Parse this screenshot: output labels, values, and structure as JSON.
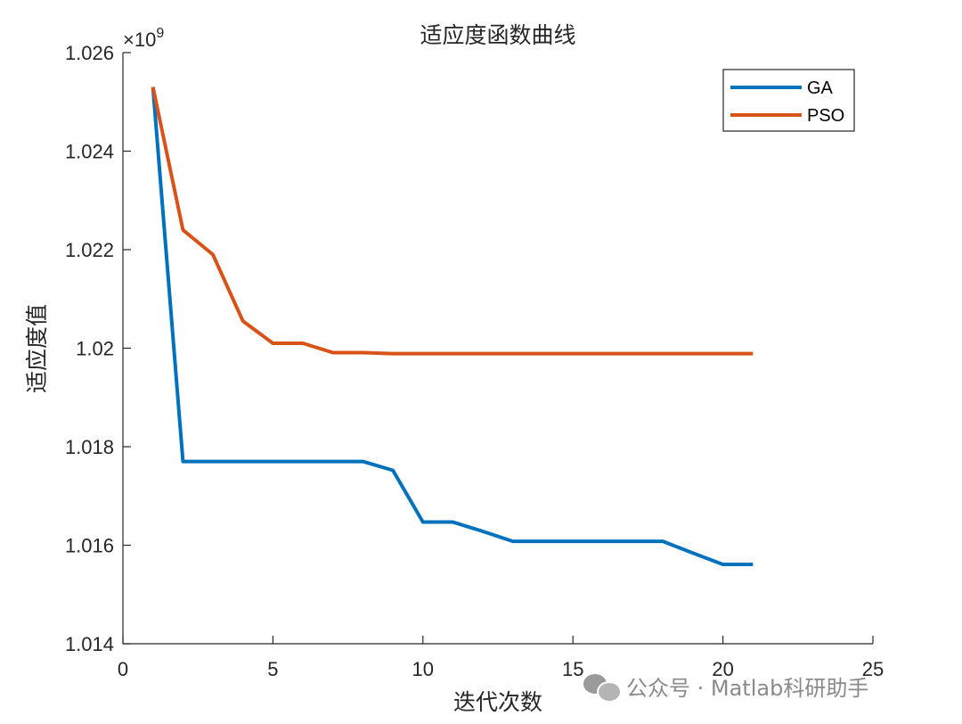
{
  "chart_data": {
    "type": "line",
    "title": "适应度函数曲线",
    "xlabel": "迭代次数",
    "ylabel": "适应度值",
    "exponent_label": "×10",
    "exponent_power": "9",
    "xlim": [
      0,
      25
    ],
    "ylim": [
      1.014,
      1.026
    ],
    "xticks": [
      0,
      5,
      10,
      15,
      20,
      25
    ],
    "yticks": [
      1.014,
      1.016,
      1.018,
      1.02,
      1.022,
      1.024,
      1.026
    ],
    "xtick_labels": [
      "0",
      "5",
      "10",
      "15",
      "20",
      "25"
    ],
    "ytick_labels": [
      "1.014",
      "1.016",
      "1.018",
      "1.02",
      "1.022",
      "1.024",
      "1.026"
    ],
    "legend_position": "top-right",
    "series": [
      {
        "name": "GA",
        "color": "#0072BD",
        "x": [
          1,
          2,
          3,
          4,
          5,
          6,
          7,
          8,
          9,
          10,
          11,
          12,
          13,
          14,
          15,
          16,
          17,
          18,
          19,
          20,
          21
        ],
        "y": [
          1.0253,
          1.0177,
          1.0177,
          1.0177,
          1.0177,
          1.0177,
          1.0177,
          1.0177,
          1.01752,
          1.01647,
          1.01647,
          1.01628,
          1.01608,
          1.01608,
          1.01608,
          1.01608,
          1.01608,
          1.01608,
          1.01584,
          1.01561,
          1.01561
        ]
      },
      {
        "name": "PSO",
        "color": "#D95319",
        "x": [
          1,
          2,
          3,
          4,
          5,
          6,
          7,
          8,
          9,
          10,
          11,
          12,
          13,
          14,
          15,
          16,
          17,
          18,
          19,
          20,
          21
        ],
        "y": [
          1.0253,
          1.0224,
          1.0219,
          1.02055,
          1.0201,
          1.0201,
          1.01991,
          1.01991,
          1.01989,
          1.01989,
          1.01989,
          1.01989,
          1.01989,
          1.01989,
          1.01989,
          1.01989,
          1.01989,
          1.01989,
          1.01989,
          1.01989,
          1.01989
        ]
      }
    ]
  },
  "watermark": {
    "icon": "wechat-icon",
    "text": "公众号 · Matlab科研助手"
  }
}
